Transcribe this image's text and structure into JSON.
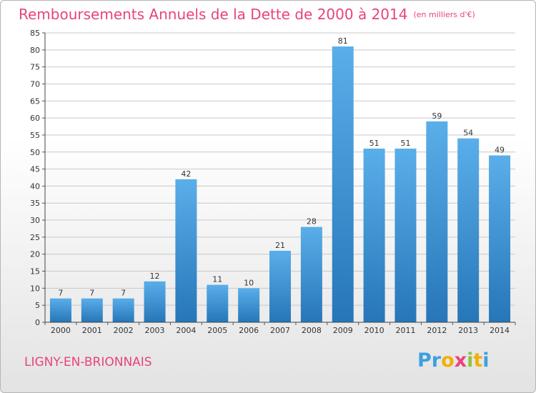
{
  "header": {
    "title": "Remboursements Annuels de la Dette de 2000 à 2014",
    "unit": "(en milliers d'€)"
  },
  "footer": {
    "commune": "LIGNY-EN-BRIONNAIS",
    "logo_letters": [
      "P",
      "r",
      "o",
      "x",
      "i",
      "t",
      "i"
    ]
  },
  "colors": {
    "title": "#e8437c",
    "bar_top": "#5aaee9",
    "bar_bottom": "#2676b8",
    "grid": "#c8c8c8",
    "logo": [
      "#3da0e0",
      "#3da0e0",
      "#f4b000",
      "#e8437c",
      "#8bc43f",
      "#f4b000",
      "#3da0e0"
    ]
  },
  "chart_data": {
    "type": "bar",
    "title": "Remboursements Annuels de la Dette de 2000 à 2014",
    "xlabel": "",
    "ylabel": "",
    "categories": [
      "2000",
      "2001",
      "2002",
      "2003",
      "2004",
      "2005",
      "2006",
      "2007",
      "2008",
      "2009",
      "2010",
      "2011",
      "2012",
      "2013",
      "2014"
    ],
    "values": [
      7,
      7,
      7,
      12,
      42,
      11,
      10,
      21,
      28,
      81,
      51,
      51,
      59,
      54,
      49
    ],
    "ylim": [
      0,
      85
    ],
    "yticks": [
      0,
      5,
      10,
      15,
      20,
      25,
      30,
      35,
      40,
      45,
      50,
      55,
      60,
      65,
      70,
      75,
      80,
      85
    ],
    "grid": true,
    "legend": "none"
  }
}
